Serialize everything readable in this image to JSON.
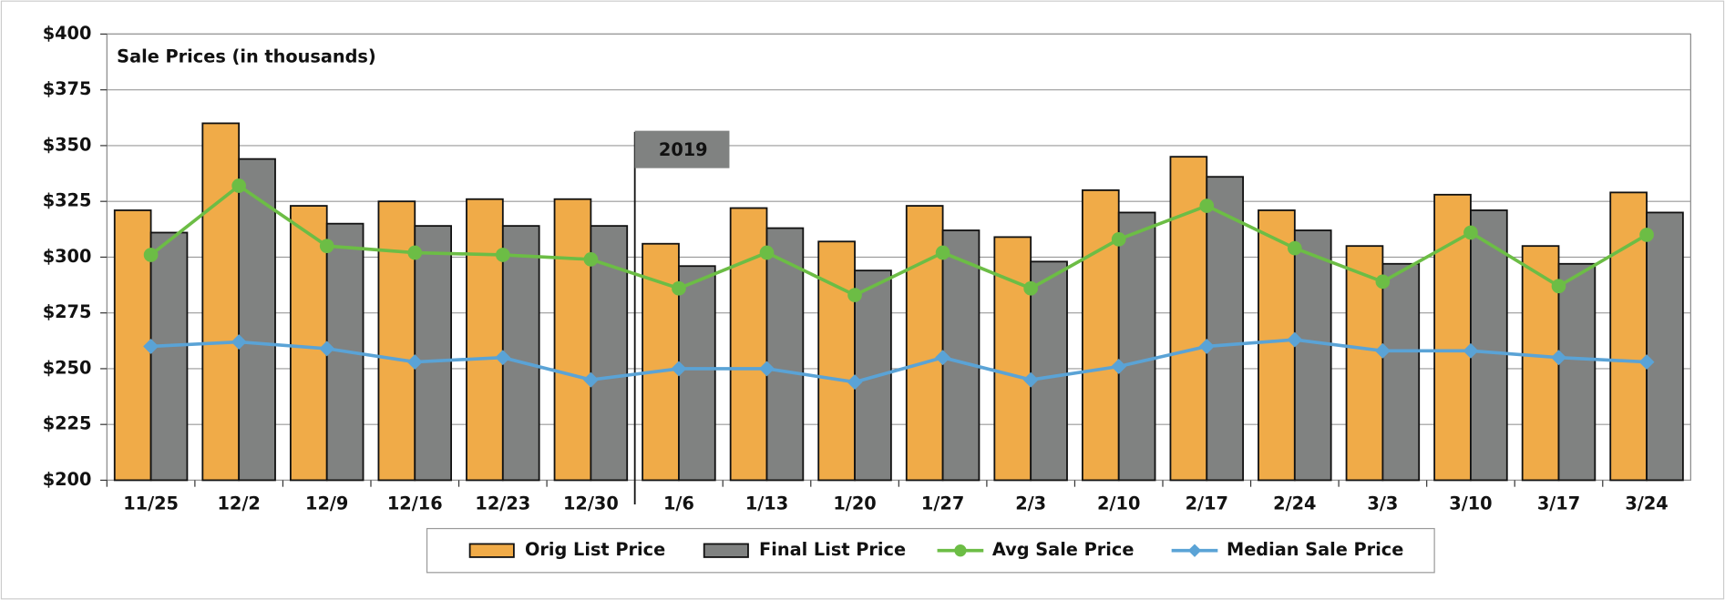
{
  "chart_data": {
    "type": "bar_line",
    "title": "Sale Prices (in thousands)",
    "annotation": "2019",
    "categories": [
      "11/25",
      "12/2",
      "12/9",
      "12/16",
      "12/23",
      "12/30",
      "1/6",
      "1/13",
      "1/20",
      "1/27",
      "2/3",
      "2/10",
      "2/17",
      "2/24",
      "3/3",
      "3/10",
      "3/17",
      "3/24"
    ],
    "series": [
      {
        "name": "Orig List Price",
        "type": "bar",
        "color": "#f0ab48",
        "values": [
          321,
          360,
          323,
          325,
          326,
          326,
          306,
          322,
          307,
          323,
          309,
          330,
          345,
          321,
          305,
          328,
          305,
          329
        ]
      },
      {
        "name": "Final List Price",
        "type": "bar",
        "color": "#808281",
        "values": [
          311,
          344,
          315,
          314,
          314,
          314,
          296,
          313,
          294,
          312,
          298,
          320,
          336,
          312,
          297,
          321,
          297,
          320
        ]
      },
      {
        "name": "Avg Sale Price",
        "type": "line",
        "marker": "circle",
        "color": "#6cbd45",
        "values": [
          301,
          332,
          305,
          302,
          301,
          299,
          286,
          302,
          283,
          302,
          286,
          308,
          323,
          304,
          289,
          311,
          287,
          310
        ]
      },
      {
        "name": "Median Sale Price",
        "type": "line",
        "marker": "diamond",
        "color": "#5aa3d6",
        "values": [
          260,
          262,
          259,
          253,
          255,
          245,
          250,
          250,
          244,
          255,
          245,
          251,
          260,
          263,
          258,
          258,
          255,
          253
        ]
      }
    ],
    "ylim": [
      200,
      400
    ],
    "yticks": [
      {
        "value": 200,
        "label": "$200"
      },
      {
        "value": 225,
        "label": "$225"
      },
      {
        "value": 250,
        "label": "$250"
      },
      {
        "value": 275,
        "label": "$275"
      },
      {
        "value": 300,
        "label": "$300"
      },
      {
        "value": 325,
        "label": "$325"
      },
      {
        "value": 350,
        "label": "$350"
      },
      {
        "value": 375,
        "label": "$375"
      },
      {
        "value": 400,
        "label": "$400"
      }
    ],
    "grid": true,
    "legend": "bottom"
  }
}
